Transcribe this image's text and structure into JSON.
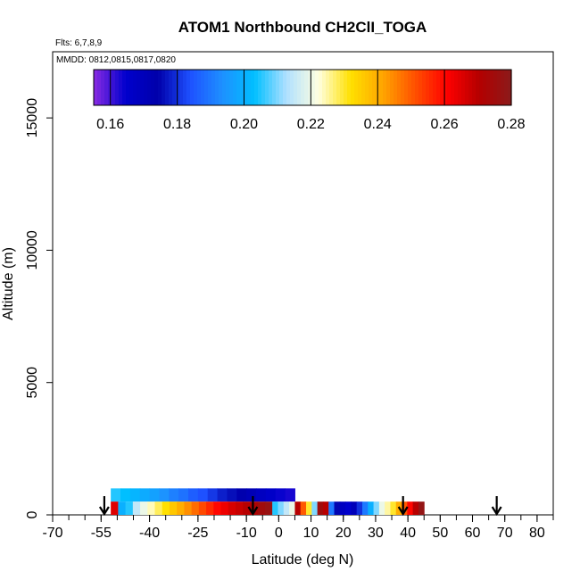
{
  "chart_data": {
    "type": "heatmap",
    "title": "ATOM1 Northbound CH2ClI_TOGA",
    "annotations": [
      "Flts: 6,7,8,9",
      "MMDD: 0812,0815,0817,0820"
    ],
    "xlabel": "Latitude (deg N)",
    "ylabel": "Altitude (m)",
    "xlim": [
      -70,
      85
    ],
    "ylim": [
      0,
      17500
    ],
    "x_ticks": [
      -70,
      -55,
      -40,
      -25,
      -10,
      0,
      10,
      20,
      30,
      40,
      50,
      60,
      70,
      80
    ],
    "x_tick_labels": [
      "-70",
      "-55",
      "-40",
      "-25",
      "-10",
      "0",
      "10",
      "20",
      "30",
      "40",
      "50",
      "60",
      "70",
      "80"
    ],
    "y_ticks": [
      0,
      5000,
      10000,
      15000
    ],
    "y_tick_labels": [
      "0",
      "5000",
      "10000",
      "15000"
    ],
    "colorbar": {
      "min": 0.155,
      "max": 0.28,
      "ticks": [
        0.16,
        0.18,
        0.2,
        0.22,
        0.24,
        0.26,
        0.28
      ],
      "tick_labels": [
        "0.16",
        "0.18",
        "0.20",
        "0.22",
        "0.24",
        "0.26",
        "0.28"
      ],
      "colors": [
        "#8a2be2",
        "#0000cd",
        "#0000aa",
        "#1e50ff",
        "#1e90ff",
        "#00bfff",
        "#b0e0ff",
        "#ffffe0",
        "#ffe000",
        "#ffa500",
        "#ff5000",
        "#ff0000",
        "#b40000",
        "#8b1a1a"
      ]
    },
    "bands": [
      {
        "altitude_range": [
          500,
          1000
        ],
        "start_lat": -52,
        "end_lat": 5,
        "values": [
          0.205,
          0.203,
          0.201,
          0.199,
          0.197,
          0.194,
          0.191,
          0.189,
          0.186,
          0.184,
          0.181,
          0.178,
          0.176,
          0.173,
          0.171,
          0.168,
          0.166,
          0.164,
          0.163
        ]
      },
      {
        "altitude_range": [
          0,
          500
        ],
        "start_lat": -52,
        "end_lat": -2,
        "values": [
          0.265,
          0.2,
          0.205,
          0.215,
          0.22,
          0.224,
          0.228,
          0.232,
          0.236,
          0.24,
          0.244,
          0.248,
          0.252,
          0.256,
          0.26,
          0.263,
          0.266,
          0.268,
          0.27,
          0.272,
          0.275,
          0.277
        ]
      },
      {
        "altitude_range": [
          0,
          500
        ],
        "start_lat": -2,
        "end_lat": 5,
        "values": [
          0.205,
          0.21,
          0.215,
          0.22
        ]
      },
      {
        "altitude_range": [
          0,
          500
        ],
        "start_lat": 5,
        "end_lat": 45,
        "values": [
          0.27,
          0.25,
          0.23,
          0.21,
          0.275,
          0.27,
          0.19,
          0.175,
          0.168,
          0.165,
          0.17,
          0.18,
          0.19,
          0.2,
          0.21,
          0.22,
          0.225,
          0.23,
          0.24,
          0.25,
          0.26,
          0.27,
          0.278
        ]
      }
    ],
    "markers_lat": [
      -54,
      -8,
      38.5,
      67.5
    ]
  }
}
